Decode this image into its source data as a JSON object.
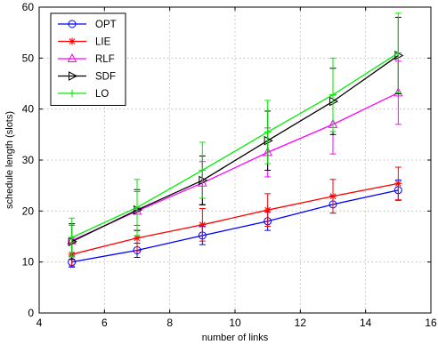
{
  "chart_data": {
    "type": "line",
    "title": "",
    "xlabel": "number of links",
    "ylabel": "schedule length (slots)",
    "xlim": [
      4,
      16
    ],
    "ylim": [
      0,
      60
    ],
    "xticks": [
      4,
      6,
      8,
      10,
      12,
      14,
      16
    ],
    "yticks": [
      0,
      10,
      20,
      30,
      40,
      50,
      60
    ],
    "grid": true,
    "legend_position": "top-left",
    "x": [
      5,
      7,
      9,
      11,
      13,
      15
    ],
    "series": [
      {
        "name": "OPT",
        "color": "#0000ff",
        "marker": "circle",
        "y": [
          10.0,
          12.3,
          15.2,
          18.0,
          21.3,
          24.1
        ],
        "err_low": [
          1.0,
          1.4,
          1.8,
          1.8,
          1.7,
          2.0
        ],
        "err_high": [
          1.0,
          1.4,
          1.8,
          1.8,
          1.7,
          2.0
        ]
      },
      {
        "name": "LIE",
        "color": "#ff0000",
        "marker": "star",
        "y": [
          11.5,
          14.7,
          17.3,
          20.2,
          22.9,
          25.4
        ],
        "err_low": [
          2.3,
          2.5,
          3.2,
          3.2,
          3.3,
          3.2
        ],
        "err_high": [
          2.3,
          2.5,
          3.2,
          3.2,
          3.3,
          3.2
        ]
      },
      {
        "name": "RLF",
        "color": "#ff00ff",
        "marker": "triangle-up",
        "y": [
          14.2,
          20.0,
          25.5,
          31.5,
          37.0,
          43.2
        ],
        "err_low": [
          3.0,
          3.8,
          4.2,
          4.8,
          5.8,
          6.2
        ],
        "err_high": [
          3.0,
          3.8,
          4.2,
          4.8,
          5.8,
          6.2
        ]
      },
      {
        "name": "SDF",
        "color": "#000000",
        "marker": "triangle-right",
        "y": [
          14.0,
          20.2,
          26.0,
          33.8,
          41.5,
          50.5
        ],
        "err_low": [
          3.5,
          4.0,
          4.8,
          5.8,
          6.5,
          7.5
        ],
        "err_high": [
          3.5,
          4.0,
          4.8,
          5.8,
          6.5,
          7.5
        ]
      },
      {
        "name": "LO",
        "color": "#00ee00",
        "marker": "plus",
        "y": [
          14.8,
          20.7,
          28.0,
          35.5,
          42.8,
          51.0
        ],
        "err_low": [
          3.8,
          5.5,
          5.5,
          6.2,
          7.2,
          7.8
        ],
        "err_high": [
          3.8,
          5.5,
          5.5,
          6.2,
          7.2,
          7.8
        ]
      }
    ]
  }
}
